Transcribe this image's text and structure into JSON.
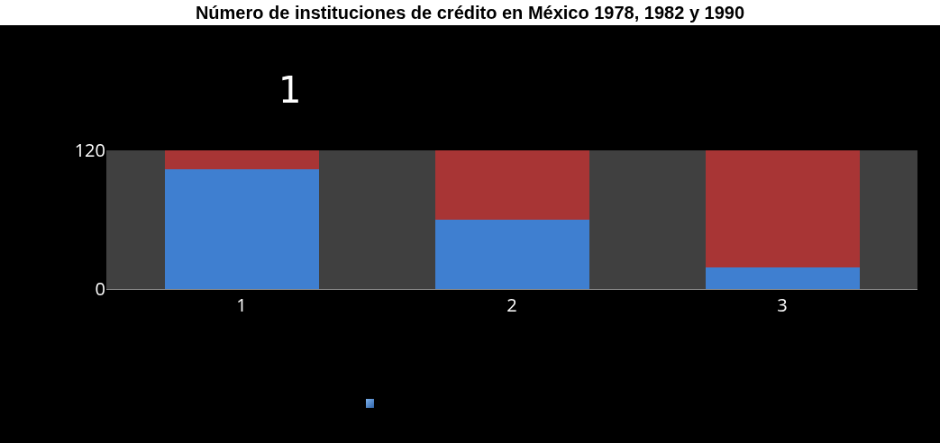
{
  "chart_data": {
    "type": "bar",
    "title": "Número de instituciones de crédito en México 1978, 1982 y 1990",
    "annotations": [
      "1"
    ],
    "categories": [
      "1",
      "2",
      "3"
    ],
    "stacked": true,
    "series": [
      {
        "color": "#3f7fd0",
        "values": [
          104,
          60,
          19
        ]
      },
      {
        "color": "#a83535",
        "values": [
          16,
          60,
          101
        ]
      }
    ],
    "ylim": [
      0,
      120
    ],
    "yticks": [
      0,
      120
    ]
  }
}
